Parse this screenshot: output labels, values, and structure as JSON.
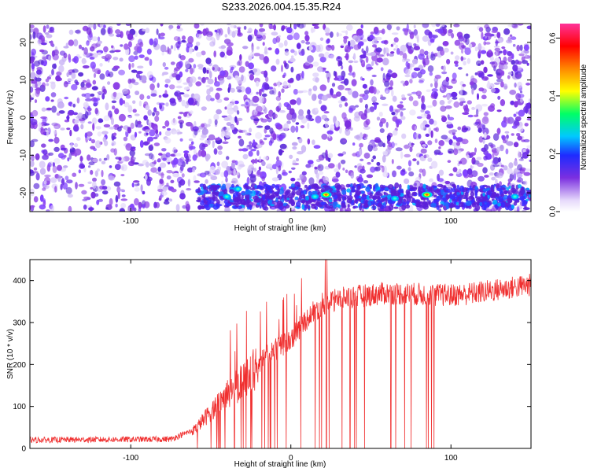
{
  "title": "S233.2026.004.15.35.R24",
  "chart_data": [
    {
      "type": "heatmap",
      "xlabel": "Height of straight line (km)",
      "ylabel": "Frequency (Hz)",
      "xlim": [
        -163,
        150
      ],
      "ylim": [
        -25,
        25
      ],
      "xticks": [
        -100,
        0,
        100
      ],
      "yticks": [
        -20,
        -10,
        0,
        10,
        20
      ],
      "colorbar": {
        "label": "Normalized spectral amplitude",
        "range": [
          0,
          0.65
        ],
        "ticks": [
          "0.0",
          "0.2",
          "0.4",
          "0.6"
        ],
        "colors": [
          "#ffffff",
          "#7b2fe0",
          "#1e2bff",
          "#00c8ff",
          "#00ff66",
          "#ffff00",
          "#ff8800",
          "#ff0000",
          "#ff3399"
        ]
      },
      "strong_band_frequency": -20,
      "hotspots": [
        {
          "x": 22,
          "y": -20.5,
          "amp": 0.5
        },
        {
          "x": 85,
          "y": -20.5,
          "amp": 0.5
        },
        {
          "x": -40,
          "y": -21,
          "amp": 0.3
        },
        {
          "x": -33,
          "y": -19,
          "amp": 0.2
        },
        {
          "x": 15,
          "y": -21,
          "amp": 0.25
        },
        {
          "x": 140,
          "y": -21,
          "amp": 0.25
        },
        {
          "x": 65,
          "y": -21.5,
          "amp": 0.2
        }
      ]
    },
    {
      "type": "line",
      "xlabel": "Height of straight line (km)",
      "ylabel": "SNR (10 * v/v)",
      "xlim": [
        -163,
        150
      ],
      "ylim": [
        0,
        450
      ],
      "xticks": [
        -100,
        0,
        100
      ],
      "yticks": [
        0,
        100,
        200,
        300,
        400
      ],
      "color": "#f03030",
      "series": [
        {
          "name": "SNR",
          "profile": [
            [
              -163,
              20
            ],
            [
              -75,
              22
            ],
            [
              -60,
              45
            ],
            [
              -45,
              110
            ],
            [
              -30,
              160
            ],
            [
              -15,
              220
            ],
            [
              0,
              260
            ],
            [
              10,
              310
            ],
            [
              20,
              345
            ],
            [
              35,
              360
            ],
            [
              60,
              370
            ],
            [
              100,
              365
            ],
            [
              115,
              370
            ],
            [
              150,
              390
            ]
          ]
        }
      ],
      "dropout_range": [
        -60,
        90
      ]
    }
  ]
}
